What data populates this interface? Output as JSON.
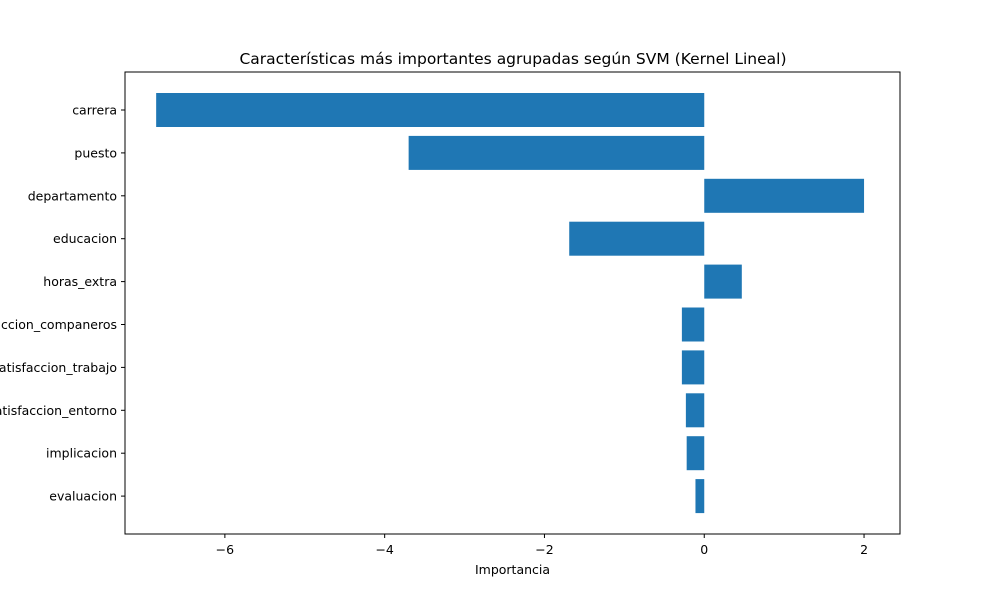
{
  "chart_data": {
    "type": "bar",
    "orientation": "horizontal",
    "title": "Características más importantes agrupadas según SVM (Kernel Lineal)",
    "xlabel": "Importancia",
    "ylabel": "",
    "categories": [
      "carrera",
      "puesto",
      "departamento",
      "educacion",
      "horas_extra",
      "satisfaccion_companeros",
      "satisfaccion_trabajo",
      "satisfaccion_entorno",
      "implicacion",
      "evaluacion"
    ],
    "values": [
      -6.86,
      -3.7,
      2.0,
      -1.69,
      0.47,
      -0.28,
      -0.28,
      -0.23,
      -0.22,
      -0.11
    ],
    "xlim": [
      -7.25,
      2.45
    ],
    "xticks": [
      -6,
      -4,
      -2,
      0,
      2
    ],
    "xtick_labels": [
      "−6",
      "−4",
      "−2",
      "0",
      "2"
    ],
    "grid": false,
    "bar_color": "#1f77b4"
  }
}
